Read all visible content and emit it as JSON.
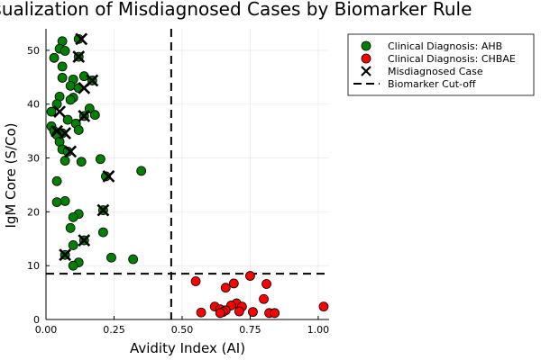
{
  "chart_data": {
    "type": "scatter",
    "title": "Visualization of Misdiagnosed Cases by Biomarker Rule",
    "xlabel": "Avidity Index (AI)",
    "ylabel": "IgM Core (S/Co)",
    "xlim": [
      0.0,
      1.04
    ],
    "ylim": [
      0,
      54
    ],
    "xticks": [
      "0.00",
      "0.25",
      "0.50",
      "0.75",
      "1.00"
    ],
    "xtick_values": [
      0.0,
      0.25,
      0.5,
      0.75,
      1.0
    ],
    "yticks": [
      "0",
      "10",
      "20",
      "30",
      "40",
      "50"
    ],
    "ytick_values": [
      0,
      10,
      20,
      30,
      40,
      50
    ],
    "grid": true,
    "legend_position": "top-right, outside plot",
    "colors": {
      "ahb": "#008000",
      "chbae": "#ff0000",
      "misdiagnosed": "#000000",
      "cutoff": "#000000"
    },
    "series": [
      {
        "name": "Clinical Diagnosis: AHB",
        "marker": "circle",
        "color": "#008000",
        "points": [
          [
            0.12,
            52.1
          ],
          [
            0.06,
            51.7
          ],
          [
            0.05,
            50.3
          ],
          [
            0.07,
            49.9
          ],
          [
            0.03,
            48.6
          ],
          [
            0.12,
            48.8
          ],
          [
            0.06,
            47.0
          ],
          [
            0.14,
            45.2
          ],
          [
            0.06,
            44.9
          ],
          [
            0.1,
            44.6
          ],
          [
            0.17,
            44.4
          ],
          [
            0.09,
            43.4
          ],
          [
            0.12,
            43.0
          ],
          [
            0.05,
            41.4
          ],
          [
            0.1,
            41.2
          ],
          [
            0.09,
            40.8
          ],
          [
            0.04,
            40.0
          ],
          [
            0.02,
            38.6
          ],
          [
            0.16,
            39.2
          ],
          [
            0.18,
            38.0
          ],
          [
            0.14,
            37.8
          ],
          [
            0.08,
            37.1
          ],
          [
            0.11,
            36.4
          ],
          [
            0.02,
            35.9
          ],
          [
            0.12,
            35.2
          ],
          [
            0.03,
            35.0
          ],
          [
            0.06,
            34.6
          ],
          [
            0.04,
            34.3
          ],
          [
            0.05,
            33.0
          ],
          [
            0.06,
            31.6
          ],
          [
            0.08,
            31.2
          ],
          [
            0.07,
            29.5
          ],
          [
            0.13,
            29.3
          ],
          [
            0.2,
            29.8
          ],
          [
            0.35,
            27.6
          ],
          [
            0.22,
            26.6
          ],
          [
            0.04,
            25.7
          ],
          [
            0.07,
            22.0
          ],
          [
            0.04,
            21.8
          ],
          [
            0.21,
            20.3
          ],
          [
            0.12,
            19.6
          ],
          [
            0.1,
            19.0
          ],
          [
            0.09,
            17.0
          ],
          [
            0.21,
            16.2
          ],
          [
            0.14,
            14.7
          ],
          [
            0.1,
            13.8
          ],
          [
            0.07,
            12.0
          ],
          [
            0.24,
            11.5
          ],
          [
            0.32,
            11.2
          ],
          [
            0.12,
            10.6
          ],
          [
            0.1,
            10.0
          ]
        ]
      },
      {
        "name": "Clinical Diagnosis: CHBAE",
        "marker": "circle",
        "color": "#ff0000",
        "points": [
          [
            0.75,
            8.1
          ],
          [
            0.55,
            7.1
          ],
          [
            0.69,
            6.7
          ],
          [
            0.81,
            6.6
          ],
          [
            0.66,
            5.9
          ],
          [
            0.8,
            3.8
          ],
          [
            0.7,
            3.0
          ],
          [
            0.68,
            2.6
          ],
          [
            0.72,
            2.4
          ],
          [
            0.62,
            2.4
          ],
          [
            1.02,
            2.4
          ],
          [
            0.64,
            1.9
          ],
          [
            0.66,
            1.7
          ],
          [
            0.71,
            1.5
          ],
          [
            0.76,
            1.4
          ],
          [
            0.65,
            1.4
          ],
          [
            0.57,
            1.3
          ],
          [
            0.82,
            1.2
          ],
          [
            0.84,
            1.2
          ],
          [
            0.64,
            1.2
          ]
        ]
      },
      {
        "name": "Misdiagnosed Case",
        "marker": "x",
        "color": "#000000",
        "points": [
          [
            0.13,
            52.1
          ],
          [
            0.12,
            48.8
          ],
          [
            0.17,
            44.4
          ],
          [
            0.14,
            43.0
          ],
          [
            0.05,
            38.6
          ],
          [
            0.14,
            37.8
          ],
          [
            0.04,
            35.0
          ],
          [
            0.07,
            34.6
          ],
          [
            0.09,
            31.2
          ],
          [
            0.23,
            26.6
          ],
          [
            0.21,
            20.3
          ],
          [
            0.14,
            14.7
          ],
          [
            0.07,
            12.0
          ]
        ]
      }
    ],
    "cutoff_lines": {
      "name": "Biomarker Cut-off",
      "style": "dashed",
      "vertical_x": 0.46,
      "horizontal_y": 8.5
    }
  }
}
